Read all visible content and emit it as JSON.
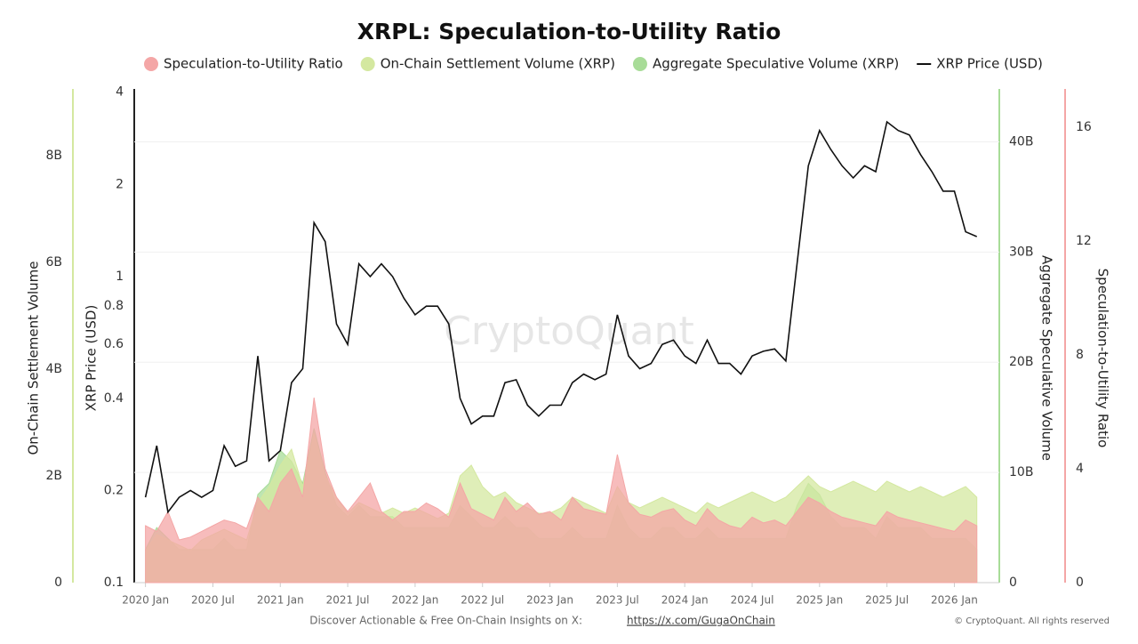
{
  "chart_data": {
    "type": "combo",
    "title": "XRPL: Speculation-to-Utility Ratio",
    "watermark": "CryptoQuant",
    "footer": {
      "text": "Discover Actionable & Free On-Chain Insights on X:",
      "link": "https://x.com/GugaOnChain",
      "copyright": "© CryptoQuant. All rights reserved"
    },
    "x": [
      "2020-01",
      "2020-02",
      "2020-03",
      "2020-04",
      "2020-05",
      "2020-06",
      "2020-07",
      "2020-08",
      "2020-09",
      "2020-10",
      "2020-11",
      "2020-12",
      "2021-01",
      "2021-02",
      "2021-03",
      "2021-04",
      "2021-05",
      "2021-06",
      "2021-07",
      "2021-08",
      "2021-09",
      "2021-10",
      "2021-11",
      "2021-12",
      "2022-01",
      "2022-02",
      "2022-03",
      "2022-04",
      "2022-05",
      "2022-06",
      "2022-07",
      "2022-08",
      "2022-09",
      "2022-10",
      "2022-11",
      "2022-12",
      "2023-01",
      "2023-02",
      "2023-03",
      "2023-04",
      "2023-05",
      "2023-06",
      "2023-07",
      "2023-08",
      "2023-09",
      "2023-10",
      "2023-11",
      "2023-12",
      "2024-01",
      "2024-02",
      "2024-03",
      "2024-04",
      "2024-05",
      "2024-06",
      "2024-07",
      "2024-08",
      "2024-09",
      "2024-10",
      "2024-11",
      "2024-12",
      "2025-01",
      "2025-02",
      "2025-03",
      "2025-04",
      "2025-05",
      "2025-06",
      "2025-07",
      "2025-08",
      "2025-09",
      "2025-10",
      "2025-11",
      "2025-12",
      "2026-01",
      "2026-02",
      "2026-03"
    ],
    "xlim": [
      "2019-12",
      "2026-05"
    ],
    "xticks": [
      {
        "value": "2020-01",
        "label": "2020 Jan"
      },
      {
        "value": "2020-07",
        "label": "2020 Jul"
      },
      {
        "value": "2021-01",
        "label": "2021 Jan"
      },
      {
        "value": "2021-07",
        "label": "2021 Jul"
      },
      {
        "value": "2022-01",
        "label": "2022 Jan"
      },
      {
        "value": "2022-07",
        "label": "2022 Jul"
      },
      {
        "value": "2023-01",
        "label": "2023 Jan"
      },
      {
        "value": "2023-07",
        "label": "2023 Jul"
      },
      {
        "value": "2024-01",
        "label": "2024 Jan"
      },
      {
        "value": "2024-07",
        "label": "2024 Jul"
      },
      {
        "value": "2025-01",
        "label": "2025 Jan"
      },
      {
        "value": "2025-07",
        "label": "2025 Jul"
      },
      {
        "value": "2026-01",
        "label": "2026 Jan"
      }
    ],
    "axes": [
      {
        "label": "On-Chain Settlement Volume",
        "side": "left",
        "color": "#d4e8a0",
        "lim": [
          0,
          9250000000.0
        ],
        "ticks": [
          0,
          {
            "value": 2000000000.0,
            "label": "2B"
          },
          {
            "value": 4000000000.0,
            "label": "4B"
          },
          {
            "value": 6000000000.0,
            "label": "6B"
          },
          {
            "value": 8000000000.0,
            "label": "8B"
          }
        ]
      },
      {
        "label": "XRP Price (USD)",
        "side": "left",
        "color": "#222222",
        "log": true,
        "lim": [
          0.1,
          4.1
        ],
        "ticks": [
          0.1,
          0.2,
          0.4,
          0.6,
          0.8,
          1,
          2,
          4
        ]
      },
      {
        "label": "Aggregate Speculative Volume",
        "side": "right",
        "color": "#a8dc98",
        "lim": [
          0,
          44800000000.0
        ],
        "ticks": [
          0,
          {
            "value": 10000000000.0,
            "label": "10B"
          },
          {
            "value": 20000000000.0,
            "label": "20B"
          },
          {
            "value": 30000000000.0,
            "label": "30B"
          },
          {
            "value": 40000000000.0,
            "label": "40B"
          }
        ]
      },
      {
        "label": "Speculation-to-Utility Ratio",
        "side": "right",
        "color": "#f4a6a6",
        "lim": [
          0,
          17.34
        ],
        "ticks": [
          0,
          4,
          8,
          12,
          16
        ]
      }
    ],
    "series": [
      {
        "name": "Speculation-to-Utility Ratio",
        "color": "#f4a6a6",
        "axis": 3,
        "kind": "area",
        "values": [
          2.0,
          1.8,
          2.5,
          1.5,
          1.6,
          1.8,
          2.0,
          2.2,
          2.1,
          1.9,
          3.0,
          2.5,
          3.5,
          4.0,
          3.0,
          6.5,
          4.0,
          3.0,
          2.5,
          3.0,
          3.5,
          2.5,
          2.2,
          2.5,
          2.5,
          2.8,
          2.6,
          2.3,
          3.5,
          2.6,
          2.4,
          2.2,
          3.0,
          2.5,
          2.8,
          2.4,
          2.5,
          2.2,
          3.0,
          2.6,
          2.5,
          2.4,
          4.5,
          2.8,
          2.4,
          2.3,
          2.5,
          2.6,
          2.2,
          2.0,
          2.6,
          2.2,
          2.0,
          1.9,
          2.3,
          2.1,
          2.2,
          2.0,
          2.5,
          3.0,
          2.8,
          2.5,
          2.3,
          2.2,
          2.1,
          2.0,
          2.5,
          2.3,
          2.2,
          2.1,
          2.0,
          1.9,
          1.8,
          2.2,
          2.0
        ]
      },
      {
        "name": "On-Chain Settlement Volume (XRP)",
        "color": "#d4e8a0",
        "axis": 0,
        "kind": "area",
        "values": [
          600000000.0,
          900000000.0,
          800000000.0,
          700000000.0,
          600000000.0,
          800000000.0,
          900000000.0,
          1000000000.0,
          900000000.0,
          800000000.0,
          1500000000.0,
          1800000000.0,
          2200000000.0,
          2500000000.0,
          1800000000.0,
          2800000000.0,
          2000000000.0,
          1600000000.0,
          1300000000.0,
          1500000000.0,
          1400000000.0,
          1300000000.0,
          1400000000.0,
          1300000000.0,
          1400000000.0,
          1300000000.0,
          1200000000.0,
          1300000000.0,
          2000000000.0,
          2200000000.0,
          1800000000.0,
          1600000000.0,
          1700000000.0,
          1500000000.0,
          1400000000.0,
          1300000000.0,
          1300000000.0,
          1400000000.0,
          1600000000.0,
          1500000000.0,
          1400000000.0,
          1300000000.0,
          1800000000.0,
          1500000000.0,
          1400000000.0,
          1500000000.0,
          1600000000.0,
          1500000000.0,
          1400000000.0,
          1300000000.0,
          1500000000.0,
          1400000000.0,
          1500000000.0,
          1600000000.0,
          1700000000.0,
          1600000000.0,
          1500000000.0,
          1600000000.0,
          1800000000.0,
          2000000000.0,
          1800000000.0,
          1700000000.0,
          1800000000.0,
          1900000000.0,
          1800000000.0,
          1700000000.0,
          1900000000.0,
          1800000000.0,
          1700000000.0,
          1800000000.0,
          1700000000.0,
          1600000000.0,
          1700000000.0,
          1800000000.0,
          1600000000.0
        ]
      },
      {
        "name": "Aggregate Speculative Volume (XRP)",
        "color": "#a8dc98",
        "axis": 2,
        "kind": "area",
        "values": [
          3000000000.0,
          5000000000.0,
          4000000000.0,
          3000000000.0,
          3000000000.0,
          3000000000.0,
          3000000000.0,
          4000000000.0,
          3000000000.0,
          3000000000.0,
          8000000000.0,
          9000000000.0,
          12000000000.0,
          11000000000.0,
          9000000000.0,
          14000000000.0,
          10000000000.0,
          7000000000.0,
          6000000000.0,
          7000000000.0,
          6000000000.0,
          6000000000.0,
          6000000000.0,
          5000000000.0,
          5000000000.0,
          5000000000.0,
          5000000000.0,
          5000000000.0,
          7000000000.0,
          6000000000.0,
          5000000000.0,
          5000000000.0,
          6000000000.0,
          5000000000.0,
          5000000000.0,
          4000000000.0,
          4000000000.0,
          4000000000.0,
          5000000000.0,
          4000000000.0,
          4000000000.0,
          4000000000.0,
          7000000000.0,
          5000000000.0,
          4000000000.0,
          4000000000.0,
          5000000000.0,
          5000000000.0,
          4000000000.0,
          4000000000.0,
          5000000000.0,
          4000000000.0,
          4000000000.0,
          4000000000.0,
          4000000000.0,
          4000000000.0,
          4000000000.0,
          4000000000.0,
          7000000000.0,
          9000000000.0,
          8000000000.0,
          6000000000.0,
          5000000000.0,
          5000000000.0,
          5000000000.0,
          4000000000.0,
          6000000000.0,
          5000000000.0,
          5000000000.0,
          5000000000.0,
          4000000000.0,
          4000000000.0,
          4000000000.0,
          4000000000.0,
          3000000000.0
        ]
      },
      {
        "name": "XRP Price (USD)",
        "color": "#111111",
        "axis": 1,
        "kind": "line",
        "values": [
          0.19,
          0.28,
          0.17,
          0.19,
          0.2,
          0.19,
          0.2,
          0.28,
          0.24,
          0.25,
          0.55,
          0.25,
          0.27,
          0.45,
          0.5,
          1.5,
          1.3,
          0.7,
          0.6,
          1.1,
          1.0,
          1.1,
          1.0,
          0.85,
          0.75,
          0.8,
          0.8,
          0.7,
          0.4,
          0.33,
          0.35,
          0.35,
          0.45,
          0.46,
          0.38,
          0.35,
          0.38,
          0.38,
          0.45,
          0.48,
          0.46,
          0.48,
          0.75,
          0.55,
          0.5,
          0.52,
          0.6,
          0.62,
          0.55,
          0.52,
          0.62,
          0.52,
          0.52,
          0.48,
          0.55,
          0.57,
          0.58,
          0.53,
          1.1,
          2.3,
          3.0,
          2.6,
          2.3,
          2.1,
          2.3,
          2.2,
          3.2,
          3.0,
          2.9,
          2.5,
          2.2,
          1.9,
          1.9,
          1.4,
          1.35
        ]
      }
    ]
  }
}
